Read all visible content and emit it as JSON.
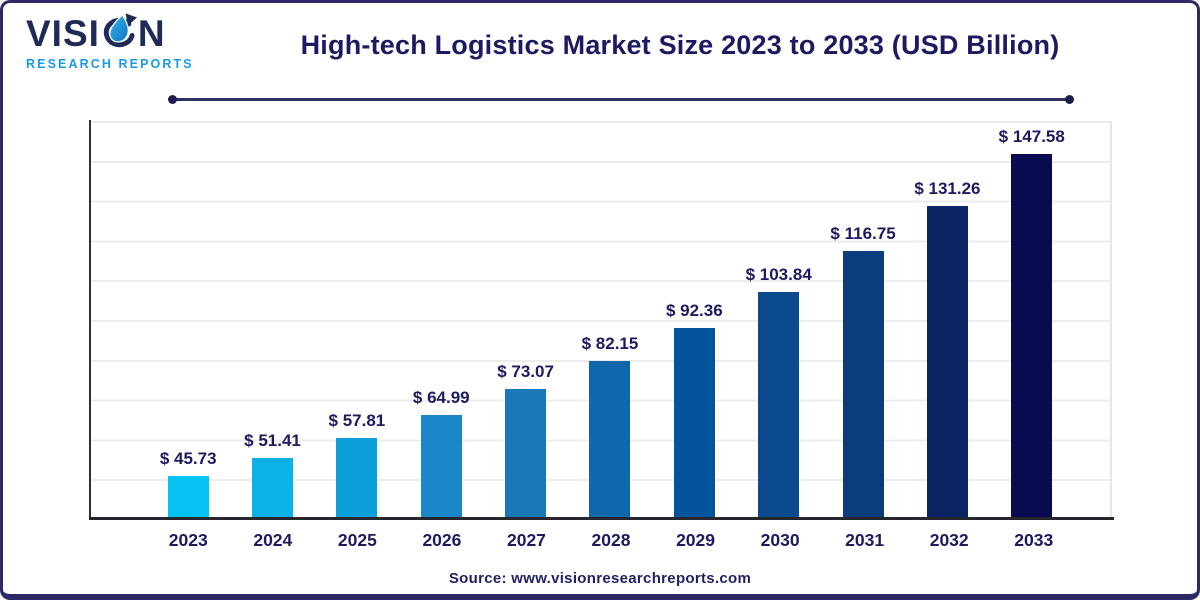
{
  "logo": {
    "word_prefix": "VISI",
    "word_suffix": "N",
    "subtitle": "RESEARCH REPORTS",
    "brand_navy": "#1f2a56",
    "brand_blue": "#189ae8"
  },
  "title": "High-tech Logistics Market Size 2023 to 2033 (USD Billion)",
  "source": "Source: www.visionresearchreports.com",
  "colors": {
    "heading_navy": "#1d1a62",
    "label_navy": "#1e1a60",
    "axis": "#26262e",
    "gridline": "#ececec",
    "rule": "#33305f"
  },
  "chart_data": {
    "type": "bar",
    "title": "High-tech Logistics Market Size 2023 to 2033 (USD Billion)",
    "categories": [
      "2023",
      "2024",
      "2025",
      "2026",
      "2027",
      "2028",
      "2029",
      "2030",
      "2031",
      "2032",
      "2033"
    ],
    "values": [
      45.73,
      51.41,
      57.81,
      64.99,
      73.07,
      82.15,
      92.36,
      103.84,
      116.75,
      131.26,
      147.58
    ],
    "labels": [
      "$ 45.73",
      "$ 51.41",
      "$ 57.81",
      "$ 64.99",
      "$ 73.07",
      "$ 82.15",
      "$ 92.36",
      "$ 103.84",
      "$ 116.75",
      "$ 131.26",
      "$ 147.58"
    ],
    "bar_colors": [
      "#07c3f4",
      "#0cb2e7",
      "#0ba0d9",
      "#1b87c8",
      "#1a78b6",
      "#0f68ab",
      "#03539d",
      "#0b4a8d",
      "#0a3c7e",
      "#0b2263",
      "#0a0a50"
    ],
    "xlabel": "",
    "ylabel": "",
    "ylim": [
      32,
      158
    ],
    "grid": "horizontal",
    "legend": "none",
    "value_label_prefix": "$ "
  }
}
